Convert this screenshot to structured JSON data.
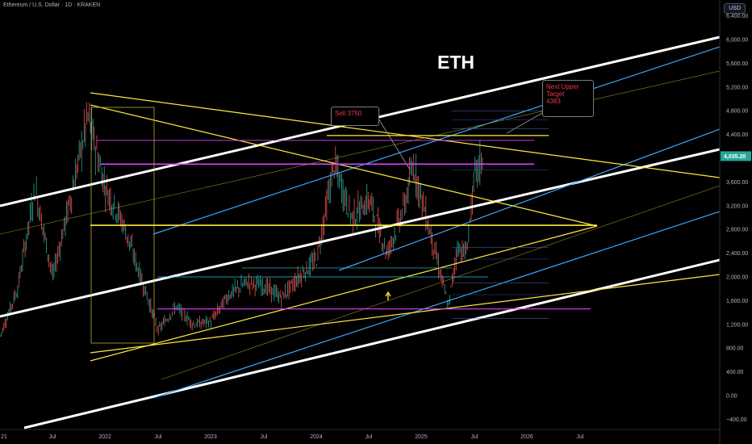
{
  "header": {
    "symbol_label": "Ethereum / U.S. Dollar · 1D · KRAKEN",
    "currency": "USD"
  },
  "annotations": {
    "title": "ETH",
    "sell": "Sell 3750",
    "target_line1": "Next Upper",
    "target_line2": "Target",
    "target_line3": "4383"
  },
  "chart_data": {
    "type": "line",
    "title": "ETH",
    "xlabel": "",
    "ylabel": "",
    "y_ticks": [
      -400,
      0,
      400,
      800,
      1200,
      1600,
      2000,
      2400,
      2800,
      3200,
      3600,
      4000,
      4400,
      4800,
      5200,
      5600,
      6000,
      6400
    ],
    "y_tick_labels": [
      "−400.00",
      "0.00",
      "400.00",
      "800.00",
      "1,200.00",
      "1,600.00",
      "2,000.00",
      "2,400.00",
      "2,800.00",
      "3,200.00",
      "3,600.00",
      "4,000.00",
      "4,400.00",
      "4,800.00",
      "5,200.00",
      "5,600.00",
      "6,000.00",
      "6,400.00"
    ],
    "x_ticks": [
      "21",
      "Jul",
      "2022",
      "Jul",
      "2023",
      "Jul",
      "2024",
      "Jul",
      "2025",
      "Jul",
      "2026",
      "Jul"
    ],
    "last_price": 4035.2,
    "last_price_label": "4,035.20",
    "price_path": [
      [
        "2021-01",
        1000
      ],
      [
        "2021-03",
        1800
      ],
      [
        "2021-05",
        3500
      ],
      [
        "2021-07",
        2000
      ],
      [
        "2021-09",
        3300
      ],
      [
        "2021-11",
        4700
      ],
      [
        "2022-01",
        3500
      ],
      [
        "2022-03",
        2900
      ],
      [
        "2022-05",
        2000
      ],
      [
        "2022-07",
        1100
      ],
      [
        "2022-09",
        1500
      ],
      [
        "2022-11",
        1200
      ],
      [
        "2023-01",
        1250
      ],
      [
        "2023-03",
        1700
      ],
      [
        "2023-05",
        1900
      ],
      [
        "2023-07",
        1850
      ],
      [
        "2023-09",
        1650
      ],
      [
        "2023-11",
        2000
      ],
      [
        "2024-01",
        2300
      ],
      [
        "2024-03",
        3900
      ],
      [
        "2024-05",
        3000
      ],
      [
        "2024-07",
        3300
      ],
      [
        "2024-09",
        2400
      ],
      [
        "2024-11",
        3200
      ],
      [
        "2024-12",
        3900
      ],
      [
        "2025-02",
        2700
      ],
      [
        "2025-04",
        1500
      ],
      [
        "2025-05",
        2500
      ],
      [
        "2025-06",
        2400
      ],
      [
        "2025-07",
        3700
      ],
      [
        "2025-08",
        4035
      ]
    ],
    "levels": [
      {
        "kind": "horizontal",
        "value": 4383,
        "color": "#ffeb3b"
      },
      {
        "kind": "horizontal",
        "value": 4300,
        "color": "#e040fb"
      },
      {
        "kind": "horizontal",
        "value": 3900,
        "color": "#e040fb"
      },
      {
        "kind": "horizontal",
        "value": 2870,
        "color": "#ffeb3b"
      },
      {
        "kind": "horizontal",
        "value": 1460,
        "color": "#e040fb"
      },
      {
        "kind": "horizontal",
        "value": 2000,
        "color": "#26c6da"
      },
      {
        "kind": "horizontal",
        "value": 2150,
        "color": "#26c6da"
      }
    ],
    "grid": false,
    "colors": {
      "up": "#26a69a",
      "down": "#ef5350",
      "channel": "#ffffff",
      "blue": "#42a5f5",
      "yellow": "#ffeb3b",
      "magenta": "#e040fb"
    }
  }
}
